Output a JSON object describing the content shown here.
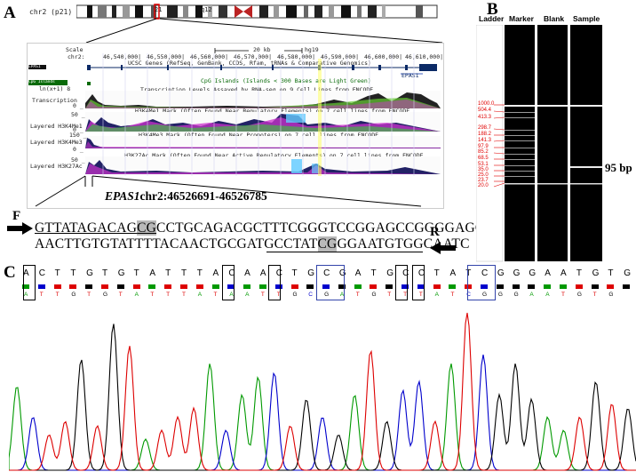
{
  "panels": {
    "a": "A",
    "b": "B",
    "c": "C"
  },
  "ideogram": {
    "chrom_label": "chr2 (p21)",
    "band_labels": [
      "21",
      "q12",
      "34",
      "35"
    ]
  },
  "browser": {
    "scale_label": "Scale",
    "chr_label": "chr2:",
    "scale_text": "20 kb",
    "assembly": "hg19",
    "coords": [
      "46,540,000|",
      "46,550,000|",
      "46,560,000|",
      "46,570,000|",
      "46,580,000|",
      "46,590,000|",
      "46,600,000|",
      "46,610,000|"
    ],
    "genes_header": "UCSC Genes (RefSeq, GenBank, CCDS, Rfam, tRNAs & Comparative Genomics)",
    "gene_left": "EPAS1",
    "gene_right": "EPAS1",
    "cpg_label": "CpG Islands",
    "cpg_header": "CpG Islands (Islands < 300 Bases are Light Green)",
    "tx_scale_label": "ln(x+1) 8",
    "tx_header": "Transcription Levels Assayed by RNA-seq on 9 Cell Lines from ENCODE",
    "tx_label": "Transcription",
    "h3k4me1_header": "H3K4Me1 Mark (Often Found Near Regulatory Elements) on 7 cell lines from ENCODE",
    "h3k4me1_label": "Layered H3K4Me1",
    "h3k4me3_header": "H3K4Me3 Mark (Often Found Near Promoters) on 7 cell lines from ENCODE",
    "h3k4me3_label": "Layered H3K4Me3",
    "h3k27ac_header": "H3K27Ac Mark (Often Found Near Active Regulatory Elements) on 7 cell lines from ENCODE",
    "h3k27ac_label": "Layered H3K27Ac",
    "scale_ticks": [
      "0 _",
      "50 _",
      "0 _",
      "150 _",
      "0 _",
      "50 _"
    ]
  },
  "sequence": {
    "title_gene": "EPAS1",
    "title_coords": "chr2:46526691-46526785",
    "forward_label": "F",
    "reverse_label": "R",
    "line1": {
      "a": "GTTATAGACAG",
      "cg": "CG",
      "b": "CCTGCAGACGCTTTCGGGTCCGGAGCCGGGGAGGG"
    },
    "line2": {
      "a": "AACTTGTGTATTTTACAACTGCGATGCCTAT",
      "cg": "CG",
      "b": "GGAATGTGGCAATC"
    }
  },
  "gel": {
    "headers": [
      "Ladder",
      "Marker",
      "Blank",
      "Sample"
    ],
    "ladder_values": [
      "1000.0",
      "504.4",
      "413.3",
      "298.7",
      "188.2",
      "141.3",
      "97.9",
      "85.2",
      "68.5",
      "53.1",
      "35.0",
      "25.0",
      "23.7",
      "20.0"
    ],
    "product_label": "95 bp"
  },
  "chromatogram": {
    "top_bases": [
      "A",
      "C",
      "T",
      "T",
      "G",
      "T",
      "G",
      "T",
      "A",
      "T",
      "T",
      "T",
      "A",
      "C",
      "A",
      "A",
      "C",
      "T",
      "G",
      "C",
      "G",
      "A",
      "T",
      "G",
      "C",
      "C",
      "T",
      "A",
      "T",
      "C",
      "G",
      "G",
      "G",
      "A",
      "A",
      "T",
      "G",
      "T",
      "G"
    ],
    "bottom_bases": [
      "A",
      "T",
      "T",
      "G",
      "T",
      "G",
      "T",
      "A",
      "T",
      "T",
      "T",
      "A",
      "T",
      "A",
      "A",
      "T",
      "T",
      "G",
      "C",
      "G",
      "A",
      "T",
      "G",
      "T",
      "T",
      "T",
      "A",
      "T",
      "C",
      "G",
      "G",
      "G",
      "A",
      "A",
      "T",
      "G",
      "T",
      "G"
    ],
    "colors": {
      "A": "#009900",
      "C": "#0000cc",
      "G": "#000000",
      "T": "#dd0000"
    }
  }
}
